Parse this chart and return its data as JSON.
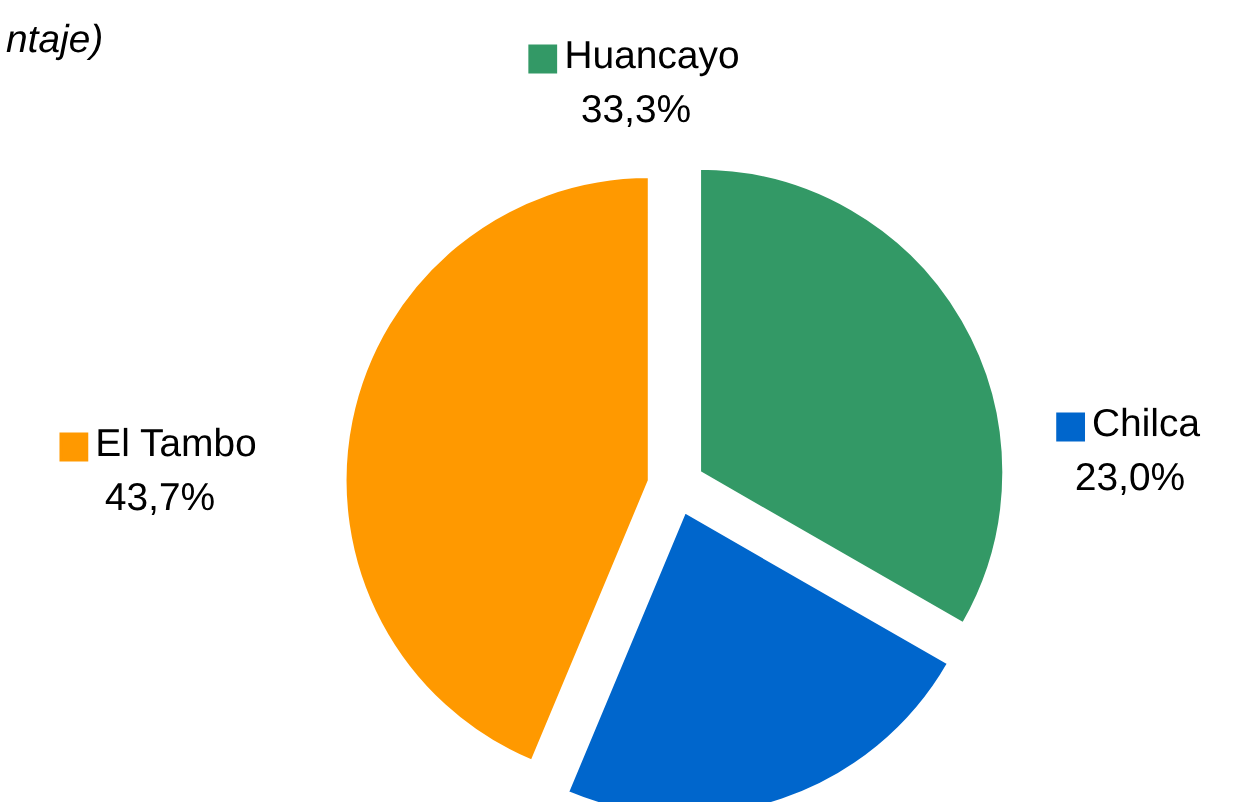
{
  "chart_data": {
    "type": "pie",
    "title": "ntaje)",
    "categories": [
      "Huancayo",
      "Chilca",
      "El Tambo"
    ],
    "values": [
      33.3,
      23.0,
      43.7
    ],
    "value_labels": [
      "33,3%",
      "23,0%",
      "43,7%"
    ],
    "colors": [
      "#339966",
      "#0066cc",
      "#ff9900"
    ],
    "legend": "top"
  }
}
